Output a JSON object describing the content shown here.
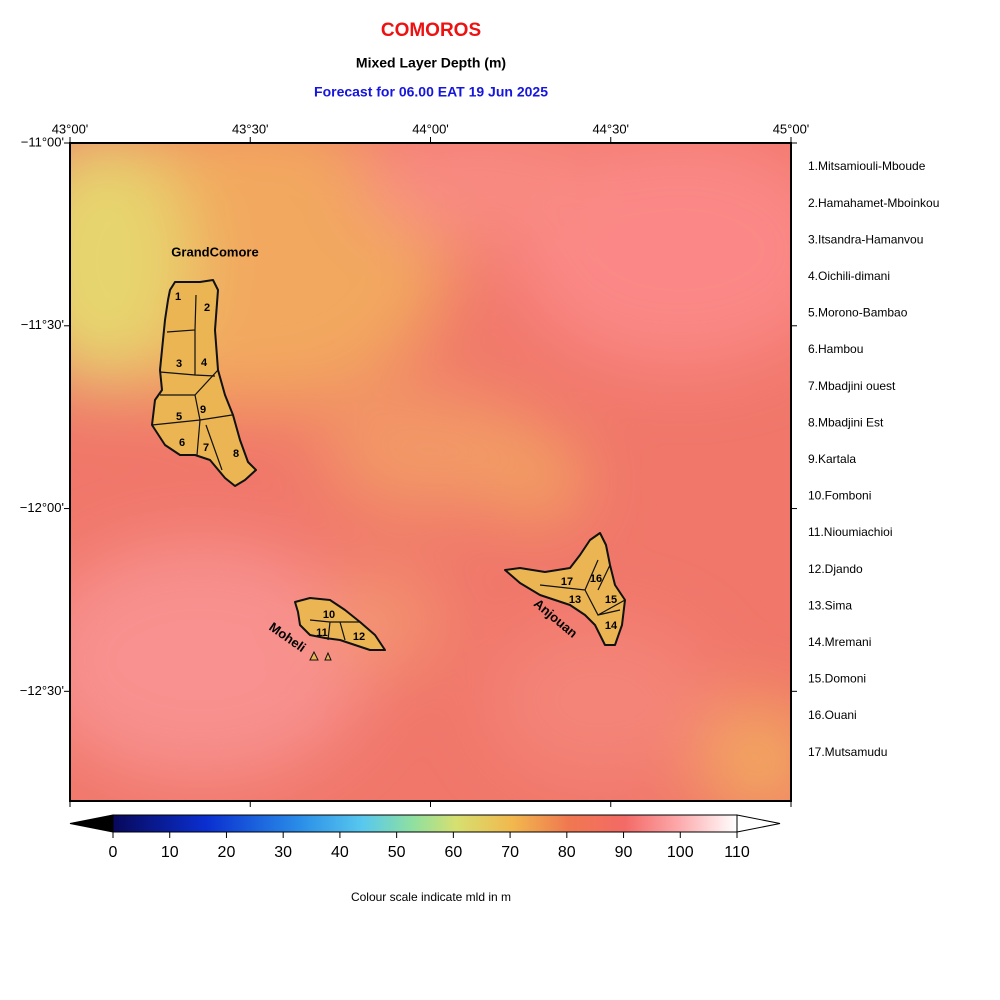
{
  "header": {
    "title": "COMOROS",
    "subtitle": "Mixed Layer Depth (m)",
    "forecast": "Forecast for  06.00 EAT 19 Jun 2025"
  },
  "map": {
    "lonlim": [
      43,
      45
    ],
    "latlim": [
      -11,
      -12.8
    ],
    "lonticks": [
      {
        "value": 43,
        "label": "43°00'"
      },
      {
        "value": 43.5,
        "label": "43°30'"
      },
      {
        "value": 44,
        "label": "44°00'"
      },
      {
        "value": 44.5,
        "label": "44°30'"
      },
      {
        "value": 45,
        "label": "45°00'"
      }
    ],
    "latticks": [
      {
        "value": -11,
        "label": "−11°00'"
      },
      {
        "value": -11.5,
        "label": "−11°30'"
      },
      {
        "value": -12,
        "label": "−12°00'"
      },
      {
        "value": -12.5,
        "label": "−12°30'"
      }
    ],
    "islands": [
      "GrandComore",
      "Moheli",
      "Anjouan"
    ],
    "region_labels": [
      "1",
      "2",
      "3",
      "4",
      "5",
      "6",
      "7",
      "8",
      "9",
      "10",
      "11",
      "12",
      "13",
      "14",
      "15",
      "16",
      "17"
    ]
  },
  "legend": [
    "1.Mitsamiouli-Mboude",
    "2.Hamahamet-Mboinkou",
    "3.Itsandra-Hamanvou",
    "4.Oichili-dimani",
    "5.Morono-Bambao",
    "6.Hambou",
    "7.Mbadjini ouest",
    "8.Mbadjini Est",
    "9.Kartala",
    "10.Fomboni",
    "11.Nioumiachioi",
    "12.Djando",
    "13.Sima",
    "14.Mremani",
    "15.Domoni",
    "16.Ouani",
    "17.Mutsamudu"
  ],
  "colorbar": {
    "lim": [
      0,
      110
    ],
    "ticks": [
      0,
      10,
      20,
      30,
      40,
      50,
      60,
      70,
      80,
      90,
      100,
      110
    ],
    "caption": "Colour scale indicate mld in m"
  }
}
